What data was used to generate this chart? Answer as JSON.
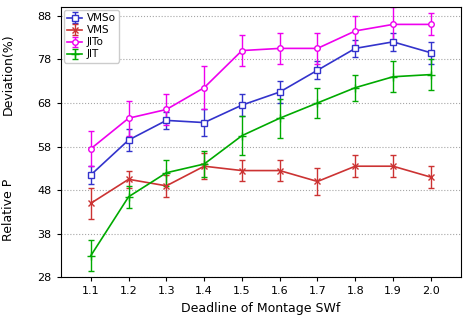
{
  "x": [
    1.1,
    1.2,
    1.3,
    1.4,
    1.5,
    1.6,
    1.7,
    1.8,
    1.9,
    2.0
  ],
  "VMSo": [
    51.5,
    59.5,
    64.0,
    63.5,
    67.5,
    70.5,
    75.5,
    80.5,
    82.0,
    79.5
  ],
  "VMSo_err": [
    2.0,
    2.5,
    2.0,
    3.0,
    2.5,
    2.5,
    2.0,
    2.0,
    2.0,
    2.5
  ],
  "VMS": [
    45.0,
    50.5,
    49.0,
    53.5,
    52.5,
    52.5,
    50.0,
    53.5,
    53.5,
    51.0
  ],
  "VMS_err": [
    3.5,
    2.0,
    2.5,
    3.0,
    2.5,
    2.5,
    3.0,
    2.5,
    2.5,
    2.5
  ],
  "JITo": [
    57.5,
    64.5,
    66.5,
    71.5,
    80.0,
    80.5,
    80.5,
    84.5,
    86.0,
    86.0
  ],
  "JITo_err": [
    4.0,
    4.0,
    3.5,
    5.0,
    3.5,
    3.5,
    3.5,
    3.5,
    4.0,
    2.5
  ],
  "JIT": [
    33.0,
    46.5,
    52.0,
    54.0,
    60.5,
    64.5,
    68.0,
    71.5,
    74.0,
    74.5
  ],
  "JIT_err": [
    3.5,
    2.5,
    3.0,
    3.0,
    4.5,
    4.5,
    3.5,
    3.0,
    3.5,
    3.5
  ],
  "VMSo_color": "#3333cc",
  "VMS_color": "#cc3333",
  "JITo_color": "#ee00ee",
  "JIT_color": "#00aa00",
  "xlabel": "Deadline of Montage SWf",
  "ylabel_top": "Deviation(%)",
  "ylabel_bottom": "Relative P",
  "ylim": [
    28,
    90
  ],
  "yticks": [
    28,
    38,
    48,
    58,
    68,
    78,
    88
  ],
  "xticks": [
    1.1,
    1.2,
    1.3,
    1.4,
    1.5,
    1.6,
    1.7,
    1.8,
    1.9,
    2.0
  ]
}
